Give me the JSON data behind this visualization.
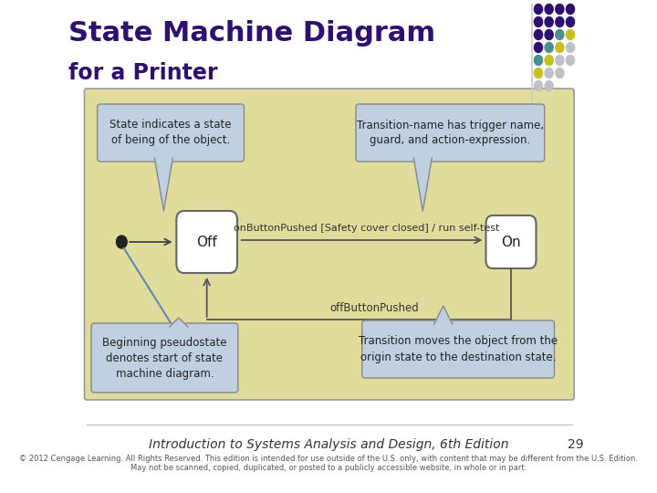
{
  "title": "State Machine Diagram",
  "subtitle": "for a Printer",
  "title_color": "#2E1070",
  "bg_color": "#FFFFFF",
  "diagram_bg": "#E0DC9C",
  "diagram_border": "#999999",
  "state_box_color": "#FFFFFF",
  "state_border_color": "#666666",
  "callout_bg": "#C0D0E0",
  "callout_border": "#888888",
  "footer_text": "Introduction to Systems Analysis and Design, 6th Edition",
  "footer_sub": "© 2012 Cengage Learning. All Rights Reserved. This edition is intended for use outside of the U.S. only, with content that may be different from the U.S. Edition.\nMay not be scanned, copied, duplicated, or posted to a publicly accessible website, in whole or in part.",
  "page_num": "29",
  "off_label": "Off",
  "on_label": "On",
  "arrow1_label": "onButtonPushed [Safety cover closed] / run self-test",
  "arrow2_label": "offButtonPushed",
  "callout1_text": "State indicates a state\nof being of the object.",
  "callout2_text": "Transition-name has trigger name,\nguard, and action-expression.",
  "callout3_text": "Beginning pseudostate\ndenotes start of state\nmachine diagram.",
  "callout4_text": "Transition moves the object from the\norigin state to the destination state.",
  "dot_pattern": [
    [
      0,
      0,
      "#2E1070"
    ],
    [
      1,
      0,
      "#2E1070"
    ],
    [
      2,
      0,
      "#2E1070"
    ],
    [
      3,
      0,
      "#2E1070"
    ],
    [
      0,
      1,
      "#2E1070"
    ],
    [
      1,
      1,
      "#2E1070"
    ],
    [
      2,
      1,
      "#2E1070"
    ],
    [
      3,
      1,
      "#2E1070"
    ],
    [
      0,
      2,
      "#2E1070"
    ],
    [
      1,
      2,
      "#2E1070"
    ],
    [
      2,
      2,
      "#4A9090"
    ],
    [
      3,
      2,
      "#C8C020"
    ],
    [
      0,
      3,
      "#2E1070"
    ],
    [
      1,
      3,
      "#4A9090"
    ],
    [
      2,
      3,
      "#C8C020"
    ],
    [
      3,
      3,
      "#C0C0C8"
    ],
    [
      0,
      4,
      "#4A9090"
    ],
    [
      1,
      4,
      "#C8C020"
    ],
    [
      2,
      4,
      "#C0C0C8"
    ],
    [
      3,
      4,
      "#C0C0C8"
    ],
    [
      0,
      5,
      "#C8C020"
    ],
    [
      1,
      5,
      "#C0C0C8"
    ],
    [
      2,
      5,
      "#C0C0C8"
    ],
    [
      0,
      6,
      "#C0C0C8"
    ],
    [
      1,
      6,
      "#C0C0C8"
    ]
  ]
}
